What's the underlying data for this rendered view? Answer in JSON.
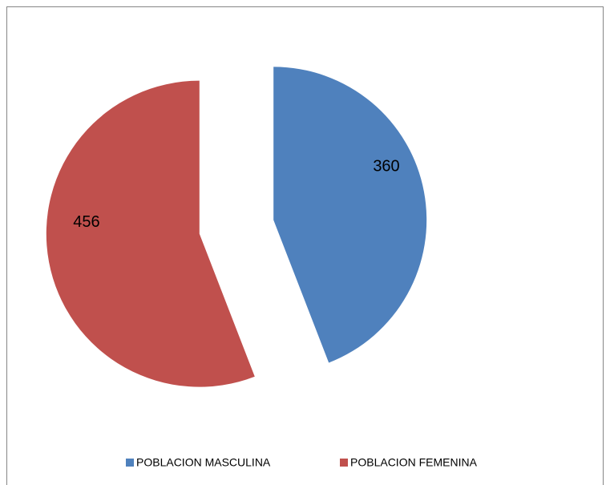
{
  "chart_data": {
    "type": "pie",
    "categories": [
      "POBLACION MASCULINA",
      "POBLACION FEMENINA"
    ],
    "values": [
      360,
      456
    ],
    "colors": [
      "#4f81bd",
      "#c0504d"
    ],
    "exploded": true,
    "legend": "bottom"
  }
}
